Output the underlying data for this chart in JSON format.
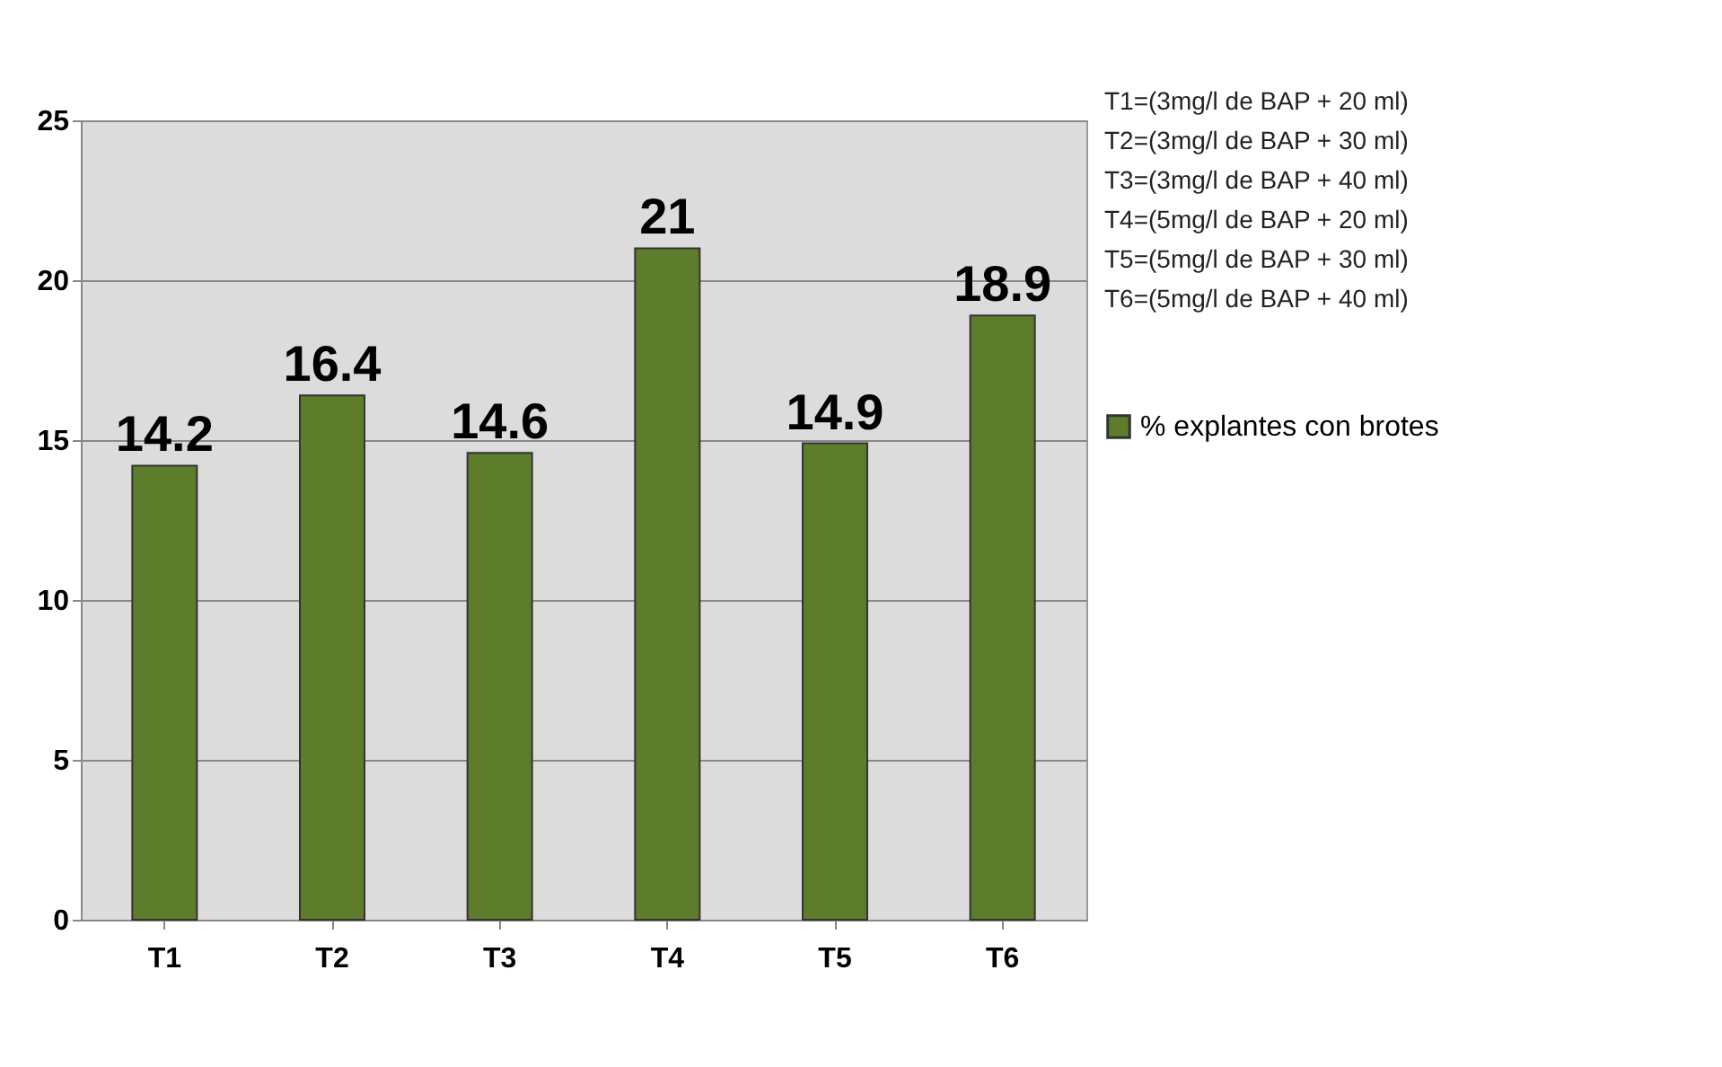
{
  "chart_data": {
    "type": "bar",
    "categories": [
      "T1",
      "T2",
      "T3",
      "T4",
      "T5",
      "T6"
    ],
    "series": [
      {
        "name": "% explantes con brotes",
        "color": "#5e7d2c",
        "values": [
          14.2,
          16.4,
          14.6,
          21,
          14.9,
          18.9
        ]
      }
    ],
    "ylim": [
      0,
      25
    ],
    "yticks": [
      0,
      5,
      10,
      15,
      20,
      25
    ],
    "grid": "y",
    "legend": "right",
    "data_labels": true,
    "annotations": [
      "T1=(3mg/l de BAP + 20 ml)",
      "T2=(3mg/l de BAP + 30 ml)",
      "T3=(3mg/l de BAP + 40 ml)",
      "T4=(5mg/l de BAP + 20 ml)",
      "T5=(5mg/l de BAP + 30 ml)",
      "T6=(5mg/l de BAP + 40 ml)"
    ]
  }
}
